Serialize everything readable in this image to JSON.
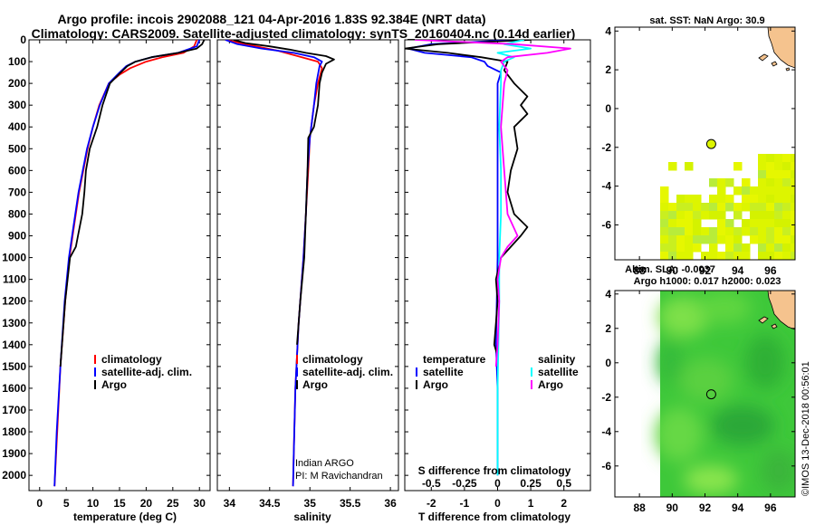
{
  "title_line1": "Argo profile: incois 2902088_121 04-Apr-2016 1.83S 92.384E (NRT data)",
  "title_line2": "Climatology: CARS2009. Satellite-adjusted climatology: synTS_20160404.nc (0.14d earlier)",
  "sst_title": "sat. SST: NaN Argo: 30.9",
  "sla_title1": "Altim. SLA: -0.0037",
  "sla_title2": "Argo h1000: 0.017 h2000: 0.023",
  "timestamp": "©IMOS 13-Dec-2018 00:56:01",
  "colors": {
    "climatology": "#ff0000",
    "satellite": "#0000ff",
    "argo": "#000000",
    "sal_satellite": "#00ffff",
    "sal_argo": "#ff00ff",
    "land": "#f5c38e",
    "sst_fill": "#ddf500"
  },
  "chart_data": [
    {
      "type": "line",
      "name": "temperature-profile",
      "xlabel": "temperature (deg C)",
      "ylabel": "depth (m)",
      "xlim": [
        -2,
        32
      ],
      "ylim": [
        0,
        2070
      ],
      "xticks": [
        0,
        5,
        10,
        15,
        20,
        25,
        30
      ],
      "yticks": [
        0,
        100,
        200,
        300,
        400,
        500,
        600,
        700,
        800,
        900,
        1000,
        1100,
        1200,
        1300,
        1400,
        1500,
        1600,
        1700,
        1800,
        1900,
        2000
      ],
      "legend": [
        "climatology",
        "satellite-adj. clim.",
        "Argo"
      ],
      "series": [
        {
          "name": "climatology",
          "color": "#ff0000",
          "depth": [
            0,
            30,
            60,
            80,
            100,
            130,
            160,
            200,
            300,
            400,
            500,
            700,
            900,
            1000,
            1200,
            1500,
            1800,
            2050
          ],
          "values": [
            29.5,
            29.0,
            27.0,
            23.0,
            20.0,
            17.0,
            15.0,
            13.0,
            11.2,
            10.0,
            9.0,
            7.4,
            6.2,
            5.6,
            4.8,
            3.9,
            3.3,
            2.8
          ]
        },
        {
          "name": "satellite-adj. clim.",
          "color": "#0000ff",
          "depth": [
            0,
            30,
            60,
            80,
            100,
            120,
            150,
            200,
            300,
            400,
            500,
            700,
            900,
            1000,
            1200,
            1500,
            1800,
            2050
          ],
          "values": [
            30.0,
            29.5,
            26.0,
            21.0,
            18.0,
            16.3,
            15.0,
            13.0,
            11.3,
            10.0,
            8.9,
            7.3,
            6.1,
            5.5,
            4.7,
            3.9,
            3.2,
            2.8
          ]
        },
        {
          "name": "Argo",
          "color": "#000000",
          "depth": [
            0,
            20,
            40,
            60,
            80,
            100,
            120,
            150,
            200,
            300,
            400,
            500,
            600,
            700,
            800,
            900,
            950,
            1000,
            1200,
            1500
          ],
          "values": [
            30.9,
            30.5,
            29.5,
            26.0,
            21.0,
            18.0,
            16.5,
            15.2,
            13.2,
            11.8,
            10.8,
            9.4,
            8.7,
            8.4,
            8.0,
            7.2,
            6.8,
            5.7,
            4.8,
            3.9
          ]
        }
      ]
    },
    {
      "type": "line",
      "name": "salinity-profile",
      "xlabel": "salinity",
      "xlim": [
        33.85,
        36.1
      ],
      "ylim": [
        0,
        2070
      ],
      "xticks": [
        34,
        34.5,
        35,
        35.5,
        36
      ],
      "legend": [
        "climatology",
        "satellite-adj. clim.",
        "Argo"
      ],
      "annotation": [
        "Indian ARGO",
        "PI: M Ravichandran"
      ],
      "series": [
        {
          "name": "climatology",
          "color": "#ff0000",
          "depth": [
            0,
            20,
            50,
            80,
            100,
            130,
            200,
            300,
            450,
            600,
            800,
            1000,
            1300,
            1600,
            1900,
            2050
          ],
          "values": [
            33.95,
            34.2,
            34.6,
            34.9,
            35.1,
            35.15,
            35.1,
            35.05,
            35.0,
            34.98,
            34.95,
            34.92,
            34.86,
            34.82,
            34.8,
            34.79
          ]
        },
        {
          "name": "satellite-adj. clim.",
          "color": "#0000ff",
          "depth": [
            0,
            20,
            40,
            60,
            80,
            100,
            120,
            200,
            300,
            450,
            600,
            800,
            1000,
            1300,
            1600,
            1900,
            2050
          ],
          "values": [
            33.95,
            34.1,
            34.4,
            34.8,
            35.05,
            35.15,
            35.12,
            35.08,
            35.05,
            35.0,
            34.97,
            34.95,
            34.92,
            34.86,
            34.82,
            34.8,
            34.79
          ]
        },
        {
          "name": "Argo",
          "color": "#000000",
          "depth": [
            0,
            15,
            30,
            45,
            60,
            75,
            90,
            110,
            150,
            200,
            300,
            400,
            450,
            600,
            800,
            1000,
            1200,
            1400
          ],
          "values": [
            34.05,
            34.2,
            34.5,
            34.75,
            34.95,
            35.2,
            35.3,
            35.2,
            35.15,
            35.12,
            35.1,
            35.05,
            34.98,
            34.97,
            34.95,
            34.93,
            34.88,
            34.84
          ]
        }
      ]
    },
    {
      "type": "line",
      "name": "difference-profile",
      "xlabel": "T difference from climatology",
      "xlabel_top": "S difference from climatology",
      "xlim": [
        -2.8,
        2.8
      ],
      "ylim": [
        0,
        2070
      ],
      "xticks_T": [
        -2,
        -1,
        0,
        1,
        2
      ],
      "xticks_S": [
        "-0.5",
        "-0.25",
        "0",
        "0.25",
        "0.5"
      ],
      "xticks_S_pos": [
        -2,
        -1,
        0,
        1,
        2
      ],
      "legend_temperature": {
        "heading": "temperature",
        "items": [
          "satellite",
          "Argo"
        ]
      },
      "legend_salinity": {
        "heading": "salinity",
        "items": [
          "satellite",
          "Argo"
        ]
      },
      "series": [
        {
          "name": "T satellite",
          "color": "#0000ff",
          "depth": [
            0,
            20,
            40,
            60,
            80,
            100,
            120,
            150,
            200,
            400,
            600,
            1000,
            1400,
            1600,
            2000
          ],
          "values": [
            0.5,
            -2.0,
            -2.7,
            -2.2,
            -0.8,
            -0.4,
            -0.3,
            0.1,
            0.0,
            0.0,
            0.0,
            0.0,
            -0.05,
            0.0,
            0.0
          ]
        },
        {
          "name": "T Argo",
          "color": "#000000",
          "depth": [
            0,
            20,
            40,
            60,
            80,
            100,
            140,
            200,
            260,
            300,
            340,
            400,
            500,
            600,
            700,
            800,
            860,
            900,
            950,
            1000,
            1100,
            1200,
            1300,
            1400,
            1450
          ],
          "values": [
            1.0,
            -1.8,
            -2.8,
            -1.5,
            -0.5,
            0.3,
            0.2,
            0.5,
            0.9,
            0.7,
            0.9,
            0.5,
            0.6,
            0.4,
            0.3,
            0.5,
            0.9,
            0.7,
            0.4,
            0.1,
            -0.05,
            0.0,
            -0.05,
            -0.1,
            0.0
          ]
        },
        {
          "name": "S satellite",
          "color": "#00ffff",
          "depth": [
            0,
            20,
            40,
            60,
            80,
            100,
            140,
            200,
            400,
            600,
            800,
            1000,
            1200,
            1600,
            2000
          ],
          "values": [
            0.8,
            0.2,
            1.0,
            0.0,
            0.5,
            0.2,
            0.1,
            0.1,
            0.05,
            0.1,
            0.1,
            0.05,
            0.05,
            0.0,
            0.0
          ]
        },
        {
          "name": "S Argo",
          "color": "#ff00ff",
          "depth": [
            0,
            20,
            40,
            60,
            80,
            100,
            140,
            200,
            400,
            600,
            800,
            900,
            950,
            1000,
            1100,
            1200,
            1400,
            1500
          ],
          "values": [
            -2.5,
            0.5,
            2.2,
            1.5,
            0.3,
            0.1,
            0.3,
            0.2,
            0.1,
            0.2,
            0.3,
            0.6,
            0.3,
            0.1,
            0.0,
            0.05,
            0.0,
            -0.05
          ]
        }
      ]
    },
    {
      "type": "heatmap",
      "name": "sst-map",
      "title": "sat. SST: NaN Argo: 30.9",
      "xlim": [
        86.5,
        97.5
      ],
      "ylim": [
        -7.8,
        4.2
      ],
      "xticks": [
        88,
        90,
        92,
        94,
        96
      ],
      "yticks": [
        4,
        2,
        0,
        -2,
        -4,
        -6
      ],
      "argo_position": {
        "lon": 92.384,
        "lat": -1.83
      }
    },
    {
      "type": "heatmap",
      "name": "sla-map",
      "title": "Altim. SLA: -0.0037",
      "xlim": [
        86.5,
        97.5
      ],
      "ylim": [
        -7.8,
        4.2
      ],
      "xticks": [
        88,
        90,
        92,
        94,
        96
      ],
      "yticks": [
        4,
        2,
        0,
        -2,
        -4,
        -6
      ],
      "argo_position": {
        "lon": 92.384,
        "lat": -1.83
      }
    }
  ]
}
